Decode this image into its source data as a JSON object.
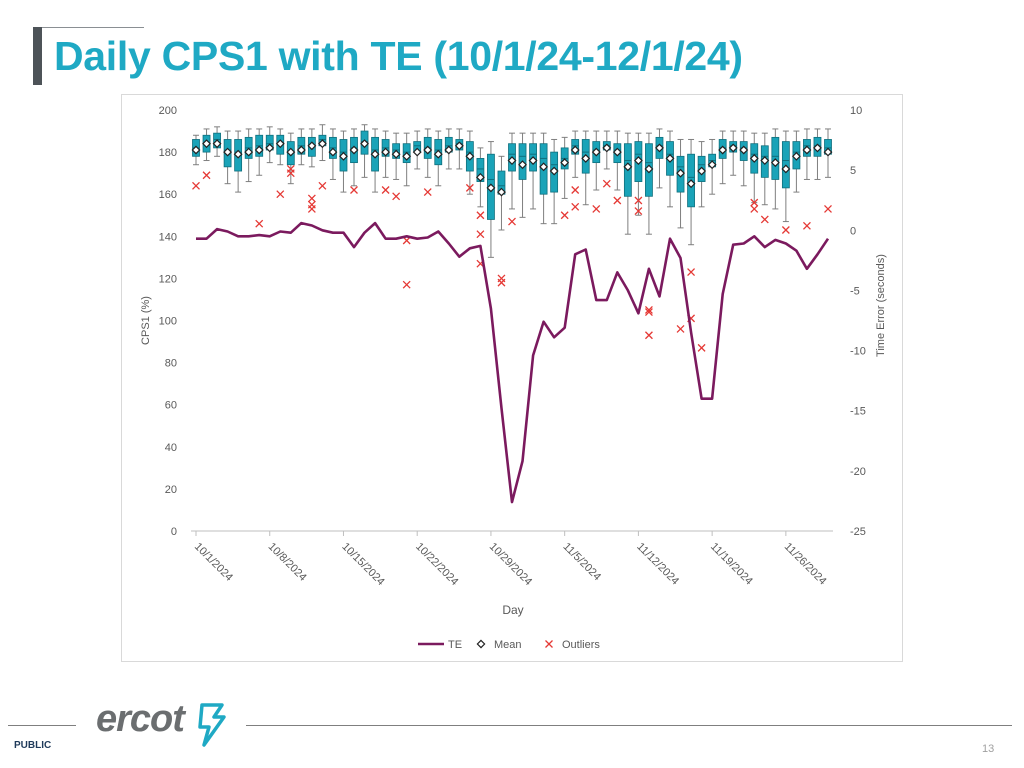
{
  "slide": {
    "title": "Daily CPS1 with TE (10/1/24-12/1/24)",
    "footer_label": "PUBLIC",
    "page_number": "13",
    "logo_text": "ercot"
  },
  "colors": {
    "title": "#1fa9c4",
    "box_fill": "#1aa3b8",
    "box_stroke": "#0f6f7d",
    "te_line": "#7b1a5e",
    "outlier": "#e53935",
    "axis_text": "#595959",
    "logo_mark": "#1fa9c4"
  },
  "chart_data": {
    "type": "box-line",
    "xlabel": "Day",
    "ylabel_left": "CPS1 (%)",
    "ylabel_right": "Time Error (seconds)",
    "ylim_left": [
      0,
      200
    ],
    "yticks_left": [
      0,
      20,
      40,
      60,
      80,
      100,
      120,
      140,
      160,
      180,
      200
    ],
    "ylim_right": [
      -25,
      10
    ],
    "yticks_right": [
      -25,
      -20,
      -15,
      -10,
      -5,
      0,
      5,
      10
    ],
    "x_tick_labels": [
      "10/1/2024",
      "10/8/2024",
      "10/15/2024",
      "10/22/2024",
      "10/29/2024",
      "11/5/2024",
      "11/12/2024",
      "11/19/2024",
      "11/26/2024"
    ],
    "x_tick_days": [
      0,
      7,
      14,
      21,
      28,
      35,
      42,
      49,
      56
    ],
    "legend": [
      "TE",
      "Mean",
      "Outliers"
    ],
    "days": 61,
    "te_seconds": [
      -0.7,
      -0.7,
      0.1,
      -0.1,
      -0.5,
      -0.5,
      -0.4,
      -0.5,
      -0.1,
      -0.2,
      0.6,
      0.4,
      0.0,
      -0.2,
      -0.2,
      -1.4,
      -0.2,
      0.6,
      -0.7,
      -0.7,
      -0.5,
      -0.7,
      -0.6,
      -0.1,
      -1.1,
      -2.2,
      -1.5,
      -1.3,
      -6.5,
      -14.8,
      -22.6,
      -19.2,
      -10.4,
      -7.6,
      -8.9,
      -8.1,
      -2.0,
      -1.6,
      -5.8,
      -5.8,
      -3.5,
      -5.0,
      -6.9,
      -3.2,
      -5.5,
      -0.7,
      -2.3,
      -8.5,
      -14.0,
      -14.0,
      -5.3,
      -1.2,
      -1.1,
      -0.5,
      -1.4,
      -0.8,
      -1.1,
      -1.7,
      -3.2,
      -2.0,
      -0.7
    ],
    "box_q1": [
      178,
      180,
      182,
      173,
      171,
      177,
      178,
      181,
      179,
      174,
      179,
      178,
      183,
      177,
      171,
      175,
      179,
      171,
      178,
      177,
      175,
      180,
      177,
      174,
      180,
      181,
      171,
      166,
      148,
      160,
      171,
      167,
      171,
      160,
      161,
      172,
      179,
      170,
      175,
      181,
      175,
      159,
      166,
      159,
      177,
      169,
      161,
      154,
      166,
      173,
      177,
      180,
      176,
      170,
      168,
      167,
      163,
      172,
      178,
      178,
      179
    ],
    "box_q3": [
      186,
      188,
      189,
      186,
      186,
      187,
      188,
      188,
      188,
      185,
      187,
      187,
      188,
      187,
      186,
      187,
      190,
      187,
      186,
      184,
      184,
      185,
      187,
      186,
      187,
      186,
      185,
      177,
      179,
      171,
      184,
      184,
      184,
      184,
      180,
      182,
      186,
      186,
      185,
      185,
      184,
      184,
      185,
      184,
      187,
      185,
      178,
      179,
      178,
      179,
      186,
      185,
      185,
      184,
      183,
      187,
      185,
      185,
      186,
      187,
      186
    ],
    "whisker_low": [
      174,
      176,
      178,
      165,
      161,
      166,
      169,
      175,
      174,
      165,
      174,
      173,
      176,
      167,
      161,
      164,
      168,
      161,
      168,
      167,
      164,
      172,
      168,
      164,
      172,
      172,
      160,
      154,
      130,
      143,
      153,
      149,
      153,
      146,
      146,
      158,
      168,
      155,
      162,
      172,
      162,
      141,
      150,
      141,
      163,
      154,
      144,
      136,
      154,
      160,
      165,
      169,
      164,
      156,
      155,
      153,
      147,
      161,
      167,
      167,
      168
    ],
    "whisker_high": [
      188,
      191,
      192,
      190,
      190,
      191,
      191,
      192,
      191,
      189,
      191,
      191,
      193,
      191,
      190,
      191,
      193,
      191,
      190,
      189,
      189,
      190,
      191,
      190,
      191,
      191,
      190,
      182,
      185,
      178,
      189,
      189,
      189,
      189,
      186,
      187,
      190,
      190,
      190,
      190,
      190,
      189,
      189,
      189,
      191,
      190,
      186,
      186,
      185,
      186,
      190,
      190,
      190,
      189,
      189,
      191,
      190,
      190,
      191,
      191,
      191
    ],
    "box_median": [
      182,
      184,
      186,
      181,
      180,
      182,
      183,
      184,
      184,
      180,
      183,
      183,
      186,
      182,
      180,
      182,
      185,
      181,
      182,
      181,
      180,
      183,
      182,
      181,
      183,
      184,
      180,
      172,
      167,
      164,
      179,
      178,
      179,
      177,
      174,
      177,
      183,
      180,
      181,
      183,
      181,
      176,
      179,
      175,
      183,
      179,
      173,
      168,
      174,
      176,
      182,
      183,
      182,
      179,
      178,
      178,
      176,
      180,
      183,
      183,
      182
    ],
    "means": [
      181,
      184,
      184,
      180,
      179,
      180,
      181,
      182,
      184,
      180,
      181,
      183,
      184,
      180,
      178,
      181,
      184,
      179,
      180,
      179,
      178,
      180,
      181,
      179,
      181,
      183,
      178,
      168,
      163,
      161,
      176,
      174,
      176,
      173,
      171,
      175,
      181,
      177,
      180,
      182,
      180,
      173,
      176,
      172,
      182,
      177,
      170,
      165,
      171,
      174,
      181,
      182,
      181,
      177,
      176,
      175,
      172,
      178,
      181,
      182,
      180
    ],
    "outliers": [
      {
        "day": 0,
        "value": 164
      },
      {
        "day": 1,
        "value": 169
      },
      {
        "day": 6,
        "value": 146
      },
      {
        "day": 8,
        "value": 160
      },
      {
        "day": 9,
        "value": 172
      },
      {
        "day": 9,
        "value": 170
      },
      {
        "day": 11,
        "value": 158
      },
      {
        "day": 11,
        "value": 155
      },
      {
        "day": 11,
        "value": 153
      },
      {
        "day": 12,
        "value": 164
      },
      {
        "day": 15,
        "value": 162
      },
      {
        "day": 18,
        "value": 162
      },
      {
        "day": 19,
        "value": 159
      },
      {
        "day": 20,
        "value": 138
      },
      {
        "day": 20,
        "value": 117
      },
      {
        "day": 22,
        "value": 161
      },
      {
        "day": 26,
        "value": 163
      },
      {
        "day": 27,
        "value": 150
      },
      {
        "day": 27,
        "value": 141
      },
      {
        "day": 27,
        "value": 127
      },
      {
        "day": 29,
        "value": 120
      },
      {
        "day": 29,
        "value": 118
      },
      {
        "day": 30,
        "value": 147
      },
      {
        "day": 35,
        "value": 150
      },
      {
        "day": 36,
        "value": 154
      },
      {
        "day": 36,
        "value": 162
      },
      {
        "day": 38,
        "value": 153
      },
      {
        "day": 39,
        "value": 165
      },
      {
        "day": 40,
        "value": 157
      },
      {
        "day": 42,
        "value": 157
      },
      {
        "day": 42,
        "value": 152
      },
      {
        "day": 43,
        "value": 105
      },
      {
        "day": 43,
        "value": 104
      },
      {
        "day": 43,
        "value": 93
      },
      {
        "day": 46,
        "value": 96
      },
      {
        "day": 47,
        "value": 123
      },
      {
        "day": 47,
        "value": 101
      },
      {
        "day": 48,
        "value": 87
      },
      {
        "day": 53,
        "value": 156
      },
      {
        "day": 53,
        "value": 153
      },
      {
        "day": 54,
        "value": 148
      },
      {
        "day": 56,
        "value": 143
      },
      {
        "day": 58,
        "value": 145
      },
      {
        "day": 60,
        "value": 153
      }
    ]
  }
}
